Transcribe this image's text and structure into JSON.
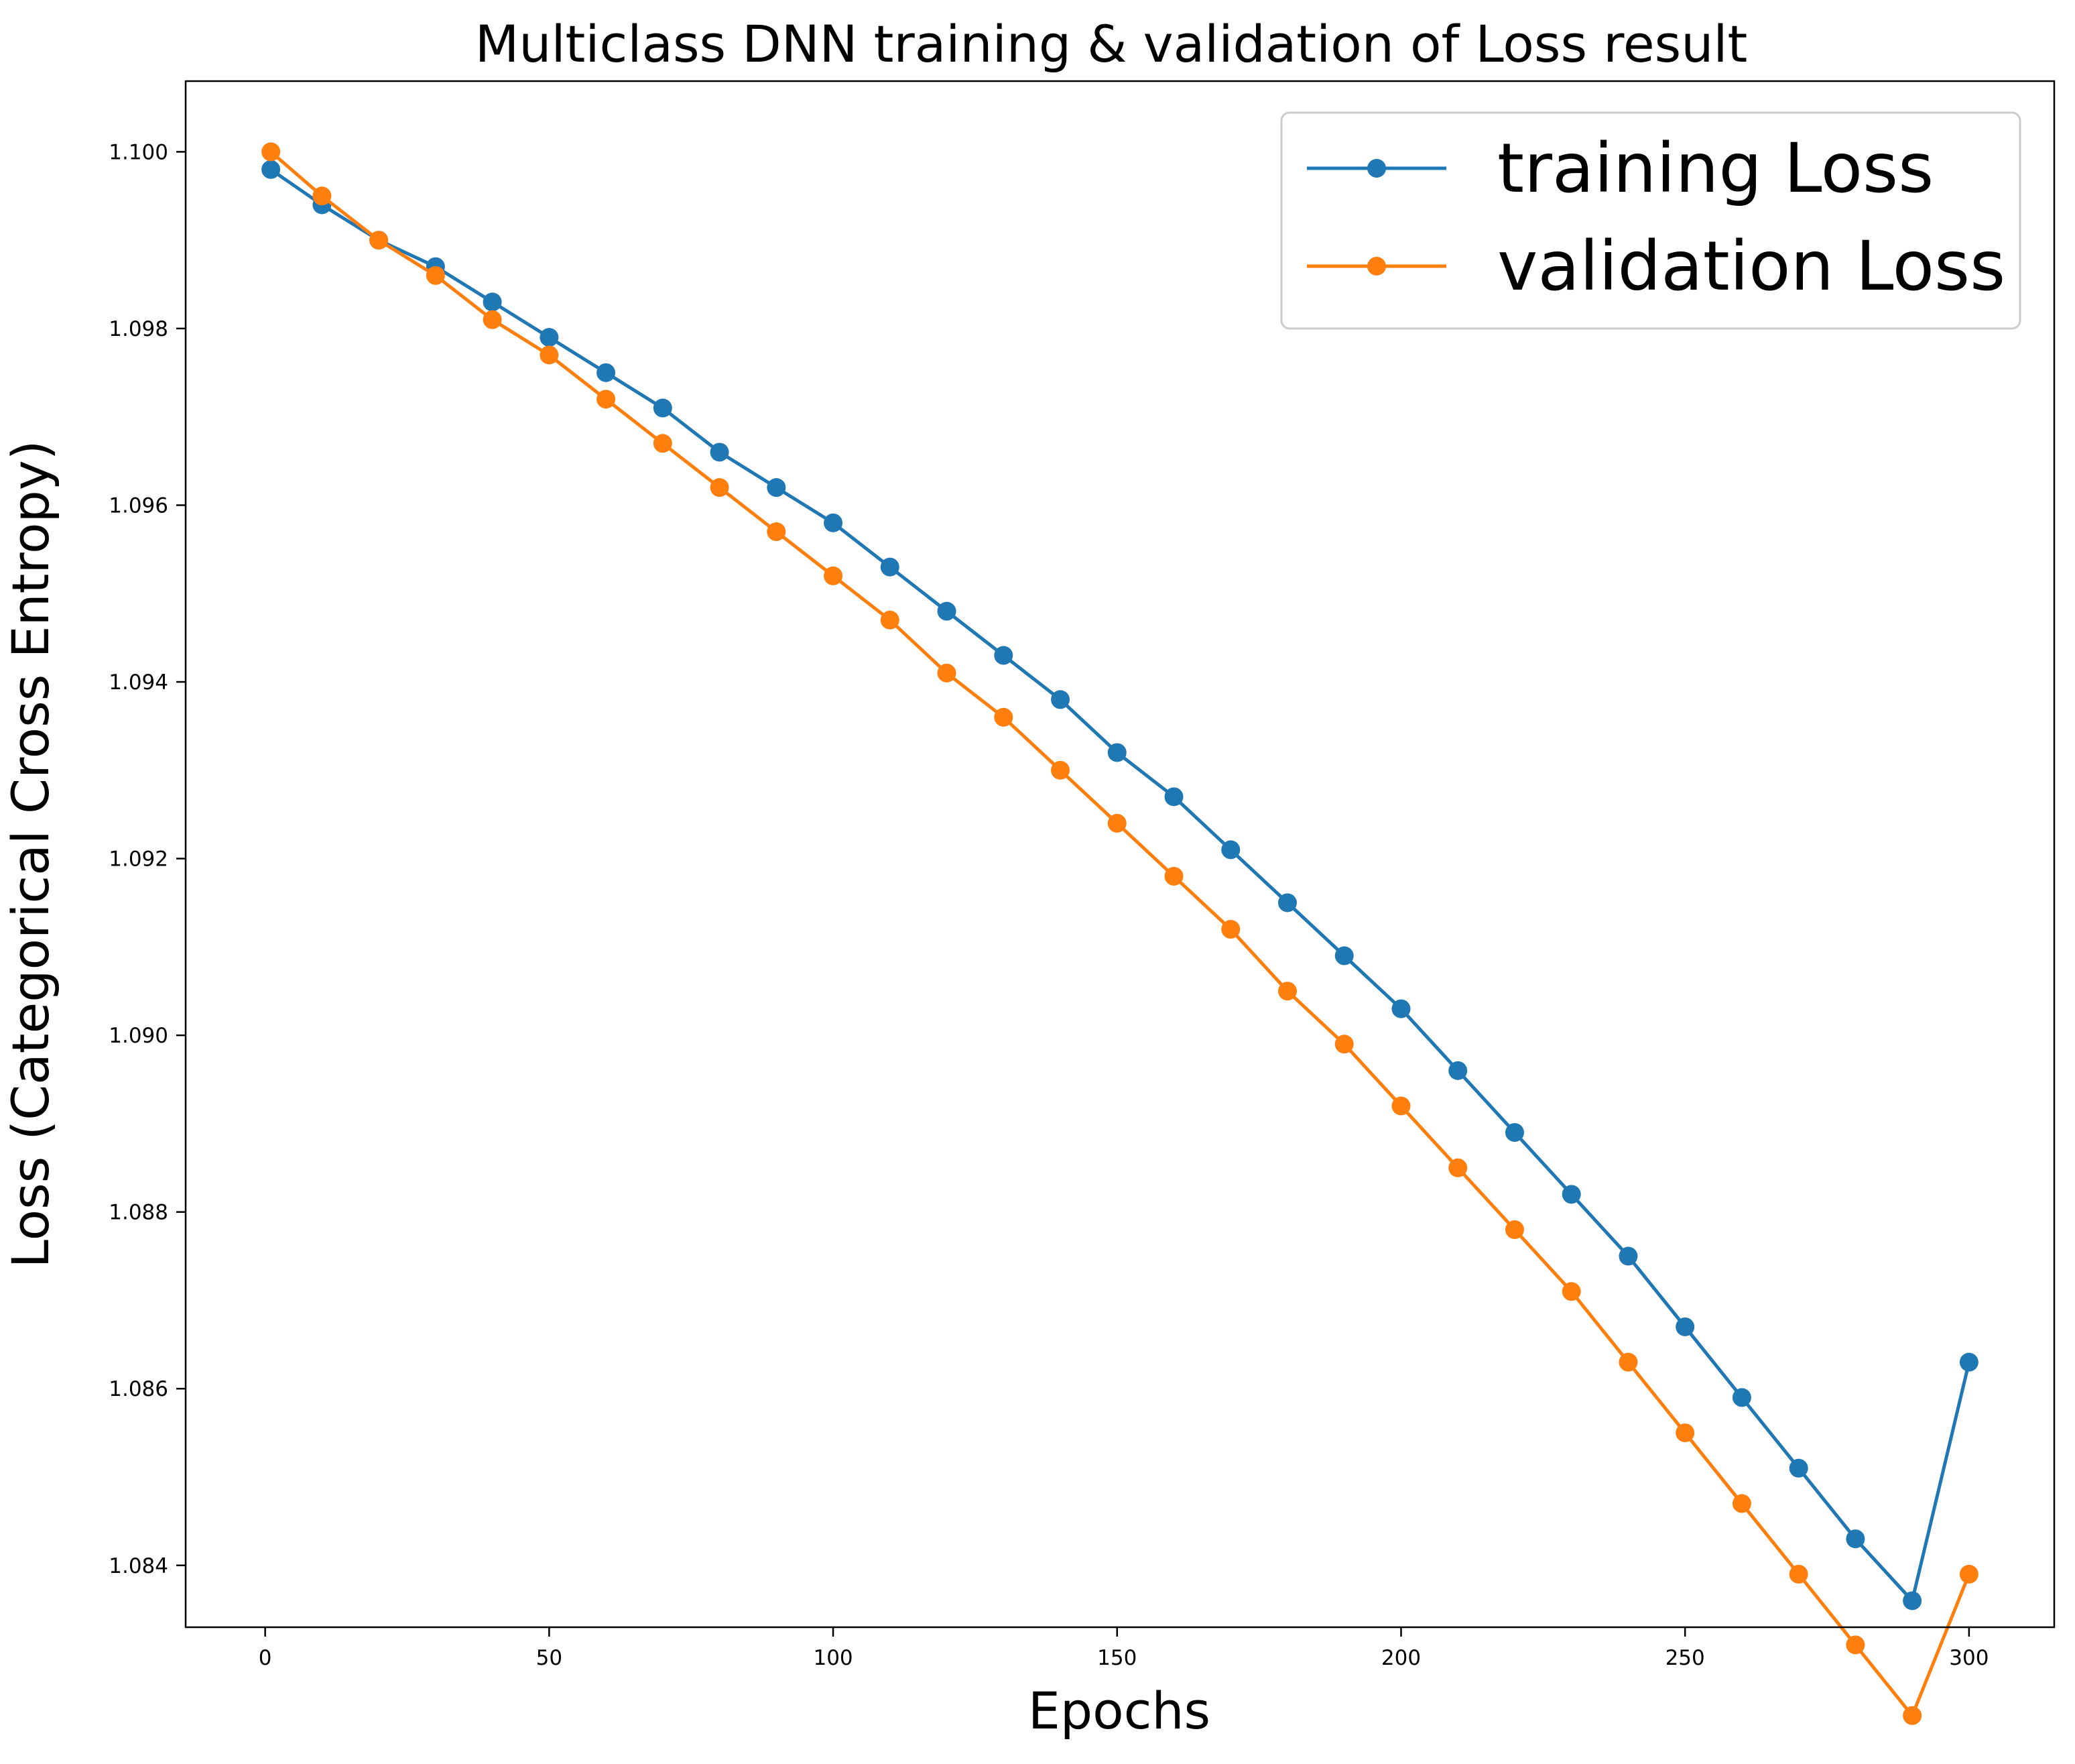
{
  "chart_data": {
    "type": "line",
    "title": "Multiclass DNN training & validation of Loss result",
    "xlabel": "Epochs",
    "ylabel": "Loss (Categorical Cross Entropy)",
    "xlim": [
      -14,
      315
    ],
    "ylim": [
      1.0833,
      1.1008
    ],
    "xticks": [
      0,
      50,
      100,
      150,
      200,
      250,
      300
    ],
    "yticks": [
      1.084,
      1.086,
      1.088,
      1.09,
      1.092,
      1.094,
      1.096,
      1.098,
      1.1
    ],
    "xtick_labels": [
      "0",
      "50",
      "100",
      "150",
      "200",
      "250",
      "300"
    ],
    "ytick_labels": [
      "1.084",
      "1.086",
      "1.088",
      "1.090",
      "1.092",
      "1.094",
      "1.096",
      "1.098",
      "1.100"
    ],
    "grid": false,
    "legend_position": "top-right",
    "markers": true,
    "x": [
      1,
      10,
      20,
      30,
      40,
      50,
      60,
      70,
      80,
      90,
      100,
      110,
      120,
      130,
      140,
      150,
      160,
      170,
      180,
      190,
      200,
      210,
      220,
      230,
      240,
      250,
      260,
      270,
      280,
      290,
      300
    ],
    "series": [
      {
        "name": "training Loss",
        "color": "#1f77b4",
        "values": [
          1.0998,
          1.0994,
          1.099,
          1.0987,
          1.0983,
          1.0979,
          1.0975,
          1.0971,
          1.0966,
          1.0962,
          1.0958,
          1.0953,
          1.0948,
          1.0943,
          1.0938,
          1.0932,
          1.0927,
          1.0921,
          1.0915,
          1.0909,
          1.0903,
          1.0896,
          1.0889,
          1.0882,
          1.0875,
          1.0867,
          1.0859,
          1.0851,
          1.0843,
          1.0836,
          1.0863
        ]
      },
      {
        "name": "validation Loss",
        "color": "#ff7f0e",
        "values": [
          1.1,
          1.0995,
          1.099,
          1.0986,
          1.0981,
          1.0977,
          1.0972,
          1.0967,
          1.0962,
          1.0957,
          1.0952,
          1.0947,
          1.0941,
          1.0936,
          1.093,
          1.0924,
          1.0918,
          1.0912,
          1.0905,
          1.0899,
          1.0892,
          1.0885,
          1.0878,
          1.0871,
          1.0863,
          1.0855,
          1.0847,
          1.0839,
          1.0831,
          1.0823,
          1.0839
        ]
      }
    ]
  }
}
